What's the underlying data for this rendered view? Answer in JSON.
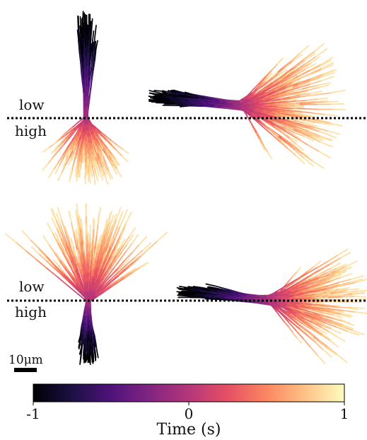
{
  "labels": {
    "low": "low",
    "high": "high",
    "scale_bar": "10μm"
  },
  "colorbar": {
    "title": "Time (s)",
    "ticks": [
      "-1",
      "0",
      "1"
    ],
    "range": [
      -1,
      1
    ],
    "colormap": [
      "#000004",
      "#1c1044",
      "#4f127b",
      "#812581",
      "#b5367a",
      "#e55064",
      "#fb8761",
      "#fec287",
      "#fcfdbf"
    ]
  },
  "panels": [
    {
      "id": "top-left",
      "orientation": "vertical",
      "early_side": "low",
      "late_side": "high"
    },
    {
      "id": "top-right",
      "orientation": "horizontal",
      "early_side": "left",
      "late_side": "right"
    },
    {
      "id": "bottom-left",
      "orientation": "vertical",
      "early_side": "high",
      "late_side": "low"
    },
    {
      "id": "bottom-right",
      "orientation": "horizontal",
      "early_side": "left",
      "late_side": "right"
    }
  ]
}
